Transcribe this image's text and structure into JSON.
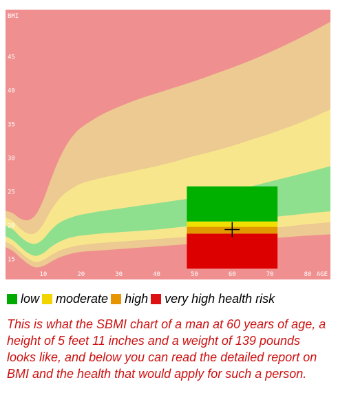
{
  "chart_data": {
    "type": "area",
    "title": "",
    "xlabel": "AGE",
    "ylabel": "BMI",
    "xlim": [
      0,
      86
    ],
    "ylim": [
      12,
      52
    ],
    "grid": false,
    "x_ticks": [
      10,
      20,
      30,
      40,
      50,
      60,
      70,
      80
    ],
    "y_ticks": [
      15,
      20,
      25,
      30,
      35,
      40,
      45
    ],
    "x_axis_title": "AGE",
    "y_axis_title": "BMI",
    "x": [
      0,
      2,
      4,
      6,
      8,
      10,
      12,
      14,
      16,
      18,
      20,
      25,
      30,
      35,
      40,
      45,
      50,
      55,
      60,
      65,
      70,
      75,
      80,
      86
    ],
    "band_boundaries": [
      {
        "name": "b1",
        "values": [
          16.8,
          16.2,
          15.2,
          14.3,
          13.8,
          14.0,
          14.6,
          15.2,
          15.6,
          15.9,
          16.1,
          16.3,
          16.5,
          16.7,
          16.9,
          17.1,
          17.3,
          17.5,
          17.7,
          17.9,
          18.1,
          18.3,
          18.5,
          18.7
        ]
      },
      {
        "name": "b2",
        "values": [
          17.6,
          17.0,
          16.0,
          15.1,
          14.6,
          14.9,
          15.6,
          16.2,
          16.6,
          16.9,
          17.1,
          17.4,
          17.6,
          17.8,
          18.0,
          18.2,
          18.4,
          18.7,
          19.0,
          19.3,
          19.6,
          19.9,
          20.2,
          20.5
        ]
      },
      {
        "name": "b3",
        "values": [
          18.4,
          17.8,
          16.8,
          15.9,
          15.5,
          15.9,
          16.8,
          17.5,
          18.0,
          18.3,
          18.5,
          18.8,
          19.0,
          19.2,
          19.4,
          19.7,
          20.0,
          20.3,
          20.6,
          20.9,
          21.2,
          21.5,
          21.8,
          22.1
        ]
      },
      {
        "name": "b4",
        "values": [
          20.0,
          19.4,
          18.3,
          17.5,
          17.3,
          18.0,
          19.3,
          20.3,
          20.9,
          21.3,
          21.6,
          22.1,
          22.5,
          22.9,
          23.3,
          23.7,
          24.1,
          24.6,
          25.2,
          25.8,
          26.5,
          27.2,
          27.9,
          28.8
        ]
      },
      {
        "name": "b5",
        "values": [
          21.2,
          20.6,
          19.5,
          18.8,
          18.9,
          20.2,
          22.2,
          23.8,
          24.9,
          25.6,
          26.2,
          27.0,
          27.6,
          28.2,
          28.8,
          29.5,
          30.3,
          31.0,
          31.8,
          32.7,
          33.6,
          34.6,
          35.7,
          37.2
        ]
      },
      {
        "name": "b6",
        "values": [
          22.2,
          21.8,
          21.0,
          20.8,
          21.6,
          23.8,
          26.8,
          29.6,
          31.8,
          33.4,
          34.5,
          36.3,
          37.6,
          38.7,
          39.6,
          40.5,
          41.4,
          42.4,
          43.4,
          44.5,
          45.7,
          47.0,
          48.4,
          50.2
        ]
      },
      {
        "name": "b7",
        "values": [
          22.8,
          22.6,
          22.2,
          22.6,
          24.0,
          27.0,
          30.8,
          34.3,
          37.2,
          39.4,
          41.0,
          43.6,
          45.4,
          46.9,
          48.2,
          49.4,
          50.6,
          51.8,
          53.0,
          54.2,
          55.4,
          56.6,
          57.8,
          59.2
        ]
      }
    ],
    "band_colors": [
      "#ef8f8f",
      "#ecca91",
      "#f8e68d",
      "#8ee08e",
      "#f8e68d",
      "#ecca91",
      "#ef8f8f",
      "#ef8f8f"
    ],
    "highlight_panel": {
      "x_range": [
        48,
        72
      ],
      "y_range": [
        13.6,
        25.8
      ],
      "bands": [
        {
          "name": "very high",
          "y_range": [
            13.6,
            18.8
          ],
          "color": "#dd0000"
        },
        {
          "name": "high",
          "y_range": [
            18.8,
            19.8
          ],
          "color": "#e09a00"
        },
        {
          "name": "moderate",
          "y_range": [
            19.8,
            20.6
          ],
          "color": "#f0e000"
        },
        {
          "name": "low",
          "y_range": [
            20.6,
            25.8
          ],
          "color": "#00b000"
        }
      ]
    },
    "marker": {
      "x": 60,
      "y": 19.4
    }
  },
  "legend": [
    {
      "label": "low",
      "color": "#00aa00"
    },
    {
      "label": "moderate",
      "color": "#f2d500"
    },
    {
      "label": "high",
      "color": "#e69500"
    },
    {
      "label": "very high health risk",
      "color": "#dd1111"
    }
  ],
  "caption": "This is what the SBMI chart of a man at 60 years of age, a height of 5 feet 11 inches and a weight of 139 pounds looks like, and below you can read the detailed report on BMI and the health that would apply for such a person."
}
